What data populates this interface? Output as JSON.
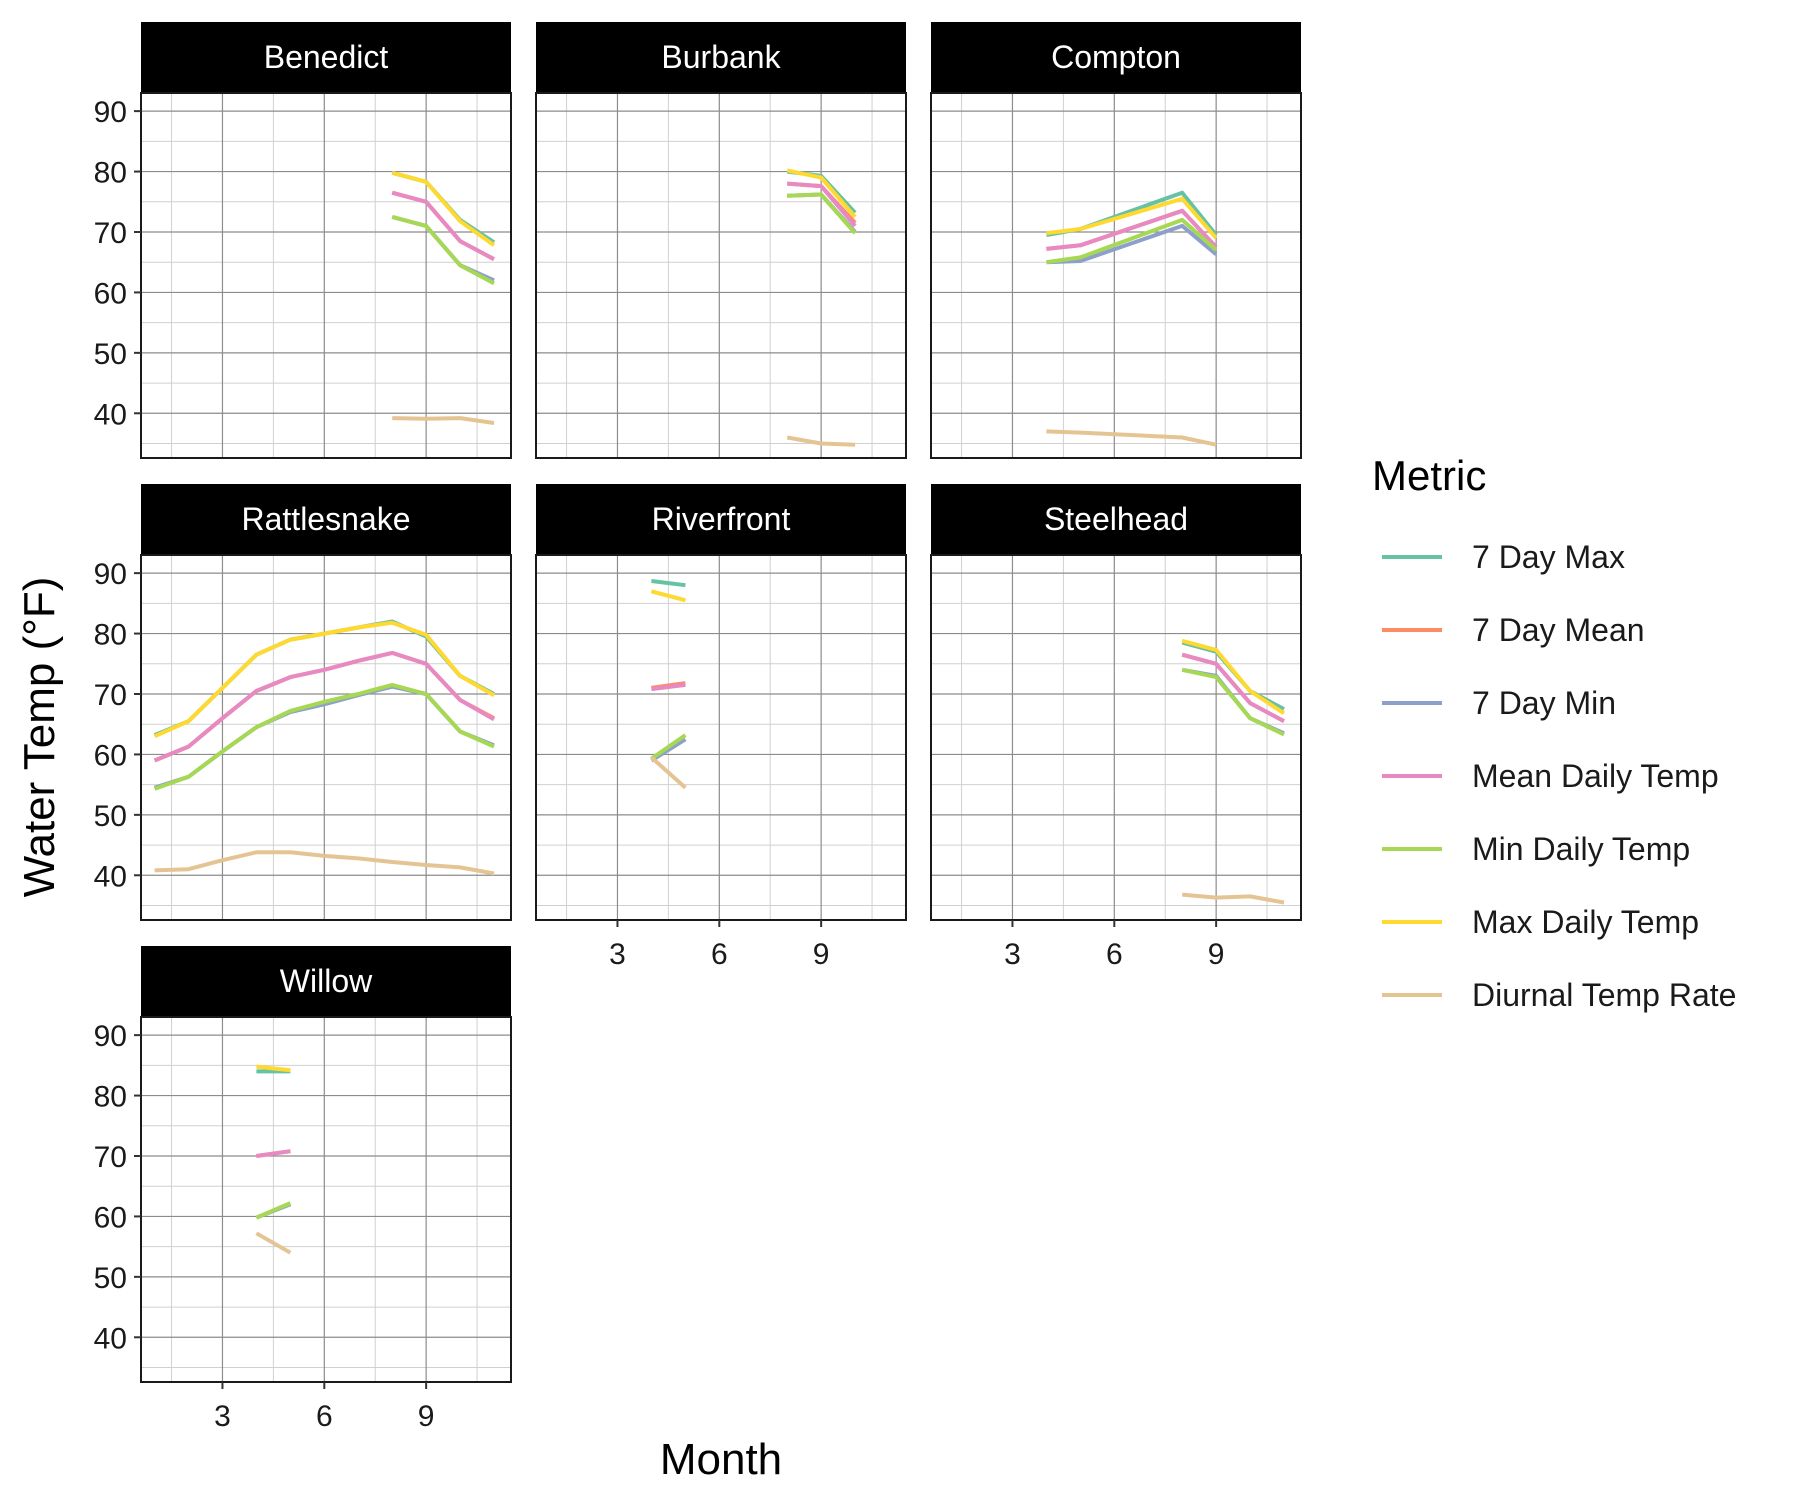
{
  "chart_data": {
    "type": "line",
    "facet_by": "site",
    "xlabel": "Month",
    "ylabel": "Water Temp (°F)",
    "x_ticks": [
      3,
      6,
      9
    ],
    "y_ticks": [
      40,
      50,
      60,
      70,
      80,
      90
    ],
    "xlim": [
      0.6,
      11.5
    ],
    "ylim": [
      32.6,
      93
    ],
    "grid": true,
    "legend": {
      "title": "Metric",
      "position": "right",
      "entries": [
        {
          "name": "7 Day Max",
          "color": "#66c2a5"
        },
        {
          "name": "7 Day Mean",
          "color": "#fc8d62"
        },
        {
          "name": "7 Day Min",
          "color": "#8da0cb"
        },
        {
          "name": "Mean Daily Temp",
          "color": "#e78ac3"
        },
        {
          "name": "Min Daily Temp",
          "color": "#a6d854"
        },
        {
          "name": "Max Daily Temp",
          "color": "#ffd92f"
        },
        {
          "name": "Diurnal Temp Rate",
          "color": "#e5c494"
        }
      ]
    },
    "panels": [
      {
        "title": "Benedict",
        "series": [
          {
            "name": "7 Day Max",
            "x": [
              8,
              9,
              10,
              11
            ],
            "y": [
              79.8,
              78.3,
              72.0,
              68.3
            ]
          },
          {
            "name": "7 Day Mean",
            "x": [
              8,
              9,
              10,
              11
            ],
            "y": [
              76.5,
              75.0,
              68.5,
              65.5
            ]
          },
          {
            "name": "7 Day Min",
            "x": [
              8,
              9,
              10,
              11
            ],
            "y": [
              72.5,
              71.0,
              64.5,
              62.0
            ]
          },
          {
            "name": "Mean Daily Temp",
            "x": [
              8,
              9,
              10,
              11
            ],
            "y": [
              76.5,
              75.0,
              68.5,
              65.5
            ]
          },
          {
            "name": "Min Daily Temp",
            "x": [
              8,
              9,
              10,
              11
            ],
            "y": [
              72.5,
              71.0,
              64.5,
              61.5
            ]
          },
          {
            "name": "Max Daily Temp",
            "x": [
              8,
              9,
              10,
              11
            ],
            "y": [
              79.8,
              78.3,
              71.8,
              67.8
            ]
          },
          {
            "name": "Diurnal Temp Rate",
            "x": [
              8,
              9,
              10,
              11
            ],
            "y": [
              39.2,
              39.1,
              39.2,
              38.4
            ]
          }
        ]
      },
      {
        "title": "Burbank",
        "series": [
          {
            "name": "7 Day Max",
            "x": [
              8,
              9,
              10
            ],
            "y": [
              80.0,
              79.3,
              73.2
            ]
          },
          {
            "name": "7 Day Mean",
            "x": [
              8,
              9,
              10
            ],
            "y": [
              78.0,
              77.6,
              71.5
            ]
          },
          {
            "name": "7 Day Min",
            "x": [
              8,
              9,
              10
            ],
            "y": [
              76.0,
              76.2,
              70.0
            ]
          },
          {
            "name": "Mean Daily Temp",
            "x": [
              8,
              9,
              10
            ],
            "y": [
              78.0,
              77.6,
              71.0
            ]
          },
          {
            "name": "Min Daily Temp",
            "x": [
              8,
              9,
              10
            ],
            "y": [
              76.0,
              76.2,
              69.8
            ]
          },
          {
            "name": "Max Daily Temp",
            "x": [
              8,
              9,
              10
            ],
            "y": [
              80.2,
              79.0,
              72.5
            ]
          },
          {
            "name": "Diurnal Temp Rate",
            "x": [
              8,
              9,
              10
            ],
            "y": [
              36.0,
              35.0,
              34.8
            ]
          }
        ]
      },
      {
        "title": "Compton",
        "series": [
          {
            "name": "7 Day Max",
            "x": [
              4,
              5,
              8,
              9
            ],
            "y": [
              69.5,
              70.5,
              76.5,
              69.5
            ]
          },
          {
            "name": "7 Day Mean",
            "x": [
              4,
              5,
              8,
              9
            ],
            "y": [
              67.2,
              67.8,
              73.5,
              67.5
            ]
          },
          {
            "name": "7 Day Min",
            "x": [
              4,
              5,
              8,
              9
            ],
            "y": [
              65.0,
              65.2,
              71.0,
              66.3
            ]
          },
          {
            "name": "Mean Daily Temp",
            "x": [
              4,
              5,
              8,
              9
            ],
            "y": [
              67.2,
              67.8,
              73.5,
              67.5
            ]
          },
          {
            "name": "Min Daily Temp",
            "x": [
              4,
              5,
              8,
              9
            ],
            "y": [
              65.0,
              65.8,
              72.0,
              67.0
            ]
          },
          {
            "name": "Max Daily Temp",
            "x": [
              4,
              5,
              8,
              9
            ],
            "y": [
              69.8,
              70.5,
              75.5,
              69.0
            ]
          },
          {
            "name": "Diurnal Temp Rate",
            "x": [
              4,
              5,
              8,
              9
            ],
            "y": [
              37.0,
              36.8,
              36.0,
              34.8
            ]
          }
        ]
      },
      {
        "title": "Rattlesnake",
        "series": [
          {
            "name": "7 Day Max",
            "x": [
              1,
              2,
              3,
              4,
              5,
              6,
              7,
              8,
              9,
              10,
              11
            ],
            "y": [
              63.2,
              65.5,
              71.0,
              76.5,
              79.0,
              80.0,
              81.0,
              82.0,
              79.5,
              73.0,
              70.0
            ]
          },
          {
            "name": "7 Day Mean",
            "x": [
              1,
              2,
              3,
              4,
              5,
              6,
              7,
              8,
              9,
              10,
              11
            ],
            "y": [
              59.0,
              61.3,
              66.0,
              70.5,
              72.8,
              74.0,
              75.5,
              76.8,
              75.0,
              69.0,
              66.0
            ]
          },
          {
            "name": "7 Day Min",
            "x": [
              1,
              2,
              3,
              4,
              5,
              6,
              7,
              8,
              9,
              10,
              11
            ],
            "y": [
              54.5,
              56.3,
              60.5,
              64.5,
              67.0,
              68.3,
              69.8,
              71.2,
              70.0,
              63.8,
              61.5
            ]
          },
          {
            "name": "Mean Daily Temp",
            "x": [
              1,
              2,
              3,
              4,
              5,
              6,
              7,
              8,
              9,
              10,
              11
            ],
            "y": [
              59.0,
              61.3,
              66.0,
              70.5,
              72.8,
              74.0,
              75.5,
              76.8,
              75.0,
              69.0,
              65.8
            ]
          },
          {
            "name": "Min Daily Temp",
            "x": [
              1,
              2,
              3,
              4,
              5,
              6,
              7,
              8,
              9,
              10,
              11
            ],
            "y": [
              54.3,
              56.3,
              60.5,
              64.5,
              67.2,
              68.7,
              70.0,
              71.5,
              70.0,
              63.8,
              61.3
            ]
          },
          {
            "name": "Max Daily Temp",
            "x": [
              1,
              2,
              3,
              4,
              5,
              6,
              7,
              8,
              9,
              10,
              11
            ],
            "y": [
              63.0,
              65.5,
              71.0,
              76.5,
              79.0,
              80.0,
              81.0,
              81.8,
              79.8,
              73.0,
              69.8
            ]
          },
          {
            "name": "Diurnal Temp Rate",
            "x": [
              1,
              2,
              3,
              4,
              5,
              6,
              7,
              8,
              9,
              10,
              11
            ],
            "y": [
              40.8,
              41.0,
              42.5,
              43.8,
              43.8,
              43.2,
              42.8,
              42.2,
              41.7,
              41.3,
              40.3
            ]
          }
        ]
      },
      {
        "title": "Riverfront",
        "series": [
          {
            "name": "7 Day Max",
            "x": [
              4,
              5
            ],
            "y": [
              88.7,
              88.0
            ]
          },
          {
            "name": "7 Day Mean",
            "x": [
              4,
              5
            ],
            "y": [
              71.0,
              71.8
            ]
          },
          {
            "name": "7 Day Min",
            "x": [
              4,
              5
            ],
            "y": [
              59.0,
              62.5
            ]
          },
          {
            "name": "Mean Daily Temp",
            "x": [
              4,
              5
            ],
            "y": [
              70.8,
              71.5
            ]
          },
          {
            "name": "Min Daily Temp",
            "x": [
              4,
              5
            ],
            "y": [
              59.3,
              63.2
            ]
          },
          {
            "name": "Max Daily Temp",
            "x": [
              4,
              5
            ],
            "y": [
              87.0,
              85.5
            ]
          },
          {
            "name": "Diurnal Temp Rate",
            "x": [
              4,
              5
            ],
            "y": [
              59.5,
              54.5
            ]
          }
        ]
      },
      {
        "title": "Steelhead",
        "series": [
          {
            "name": "7 Day Max",
            "x": [
              8,
              9,
              10,
              11
            ],
            "y": [
              78.5,
              77.0,
              70.5,
              67.5
            ]
          },
          {
            "name": "7 Day Mean",
            "x": [
              8,
              9,
              10,
              11
            ],
            "y": [
              76.5,
              75.0,
              68.5,
              65.5
            ]
          },
          {
            "name": "7 Day Min",
            "x": [
              8,
              9,
              10,
              11
            ],
            "y": [
              74.0,
              73.0,
              66.0,
              63.5
            ]
          },
          {
            "name": "Mean Daily Temp",
            "x": [
              8,
              9,
              10,
              11
            ],
            "y": [
              76.5,
              75.0,
              68.5,
              65.5
            ]
          },
          {
            "name": "Min Daily Temp",
            "x": [
              8,
              9,
              10,
              11
            ],
            "y": [
              74.0,
              72.8,
              66.0,
              63.3
            ]
          },
          {
            "name": "Max Daily Temp",
            "x": [
              8,
              9,
              10,
              11
            ],
            "y": [
              78.8,
              77.3,
              70.5,
              66.8
            ]
          },
          {
            "name": "Diurnal Temp Rate",
            "x": [
              8,
              9,
              10,
              11
            ],
            "y": [
              36.8,
              36.3,
              36.5,
              35.5
            ]
          }
        ]
      },
      {
        "title": "Willow",
        "series": [
          {
            "name": "7 Day Max",
            "x": [
              4,
              5
            ],
            "y": [
              84.0,
              84.0
            ]
          },
          {
            "name": "7 Day Mean",
            "x": [
              4,
              5
            ],
            "y": [
              70.0,
              70.8
            ]
          },
          {
            "name": "7 Day Min",
            "x": [
              4,
              5
            ],
            "y": [
              59.8,
              62.0
            ]
          },
          {
            "name": "Mean Daily Temp",
            "x": [
              4,
              5
            ],
            "y": [
              70.0,
              70.8
            ]
          },
          {
            "name": "Min Daily Temp",
            "x": [
              4,
              5
            ],
            "y": [
              59.8,
              62.2
            ]
          },
          {
            "name": "Max Daily Temp",
            "x": [
              4,
              5
            ],
            "y": [
              84.8,
              84.2
            ]
          },
          {
            "name": "Diurnal Temp Rate",
            "x": [
              4,
              5
            ],
            "y": [
              57.2,
              54.0
            ]
          }
        ]
      }
    ]
  }
}
